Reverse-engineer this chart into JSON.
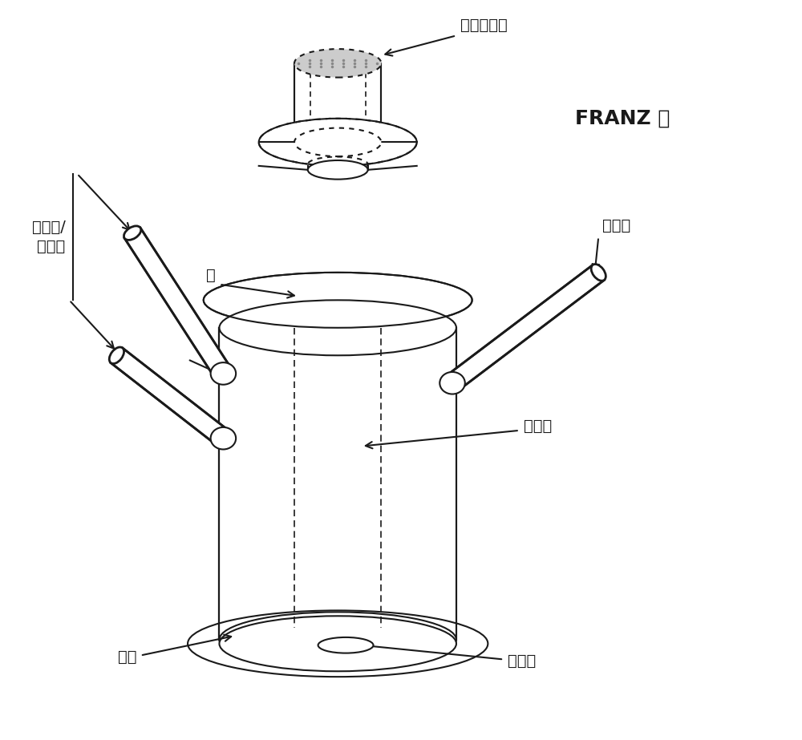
{
  "title": "FRANZ 池",
  "label_donor": "供体化合物",
  "label_membrane": "膜",
  "label_heater": "加热器/\n循环器",
  "label_sampling": "取样口",
  "label_receiver": "接收室",
  "label_jacket": "水套",
  "label_stirrer": "搅拌子",
  "bg_color": "#ffffff",
  "line_color": "#1a1a1a",
  "dot_color": "#555555",
  "title_fontsize": 18,
  "label_fontsize": 14,
  "fig_width": 10.0,
  "fig_height": 9.23
}
